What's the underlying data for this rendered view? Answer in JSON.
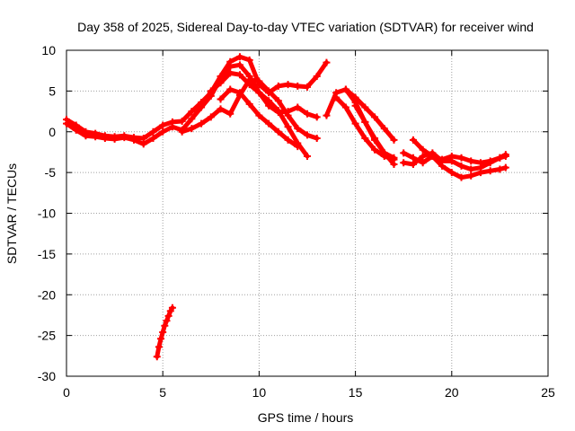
{
  "chart_data": {
    "type": "scatter",
    "title": "Day 358 of 2025, Sidereal Day-to-day VTEC variation (SDTVAR) for receiver wind",
    "xlabel": "GPS time / hours",
    "ylabel": "SDTVAR / TECUs",
    "xlim": [
      0,
      25
    ],
    "ylim": [
      -30,
      10
    ],
    "xticks": [
      0,
      5,
      10,
      15,
      20,
      25
    ],
    "yticks": [
      -30,
      -25,
      -20,
      -15,
      -10,
      -5,
      0,
      5,
      10
    ],
    "grid": true,
    "marker": "+",
    "color": "#ff0000",
    "series": [
      {
        "name": "track-1",
        "x": [
          0.0,
          0.5,
          1.0,
          1.5,
          2.0,
          2.5,
          3.0,
          3.5,
          4.0,
          4.5,
          5.0,
          5.5,
          6.0,
          6.5,
          7.0,
          7.5,
          8.0,
          8.5,
          9.0,
          9.5,
          10.0,
          10.5,
          11.0,
          11.5,
          12.0,
          12.5,
          13.0,
          13.5
        ],
        "y": [
          1.5,
          0.8,
          0.0,
          -0.2,
          -0.5,
          -0.6,
          -0.5,
          -0.7,
          -0.8,
          0.0,
          0.8,
          1.2,
          1.3,
          2.5,
          3.6,
          4.8,
          6.8,
          8.6,
          9.2,
          8.8,
          5.8,
          4.8,
          5.6,
          5.8,
          5.6,
          5.5,
          6.8,
          8.5
        ]
      },
      {
        "name": "track-2",
        "x": [
          0.0,
          0.5,
          1.0,
          1.5,
          2.0,
          2.5,
          3.0,
          3.5,
          4.0,
          4.5,
          5.0,
          5.5,
          6.0,
          6.5,
          7.0,
          7.5,
          8.0,
          8.5,
          9.0,
          9.5,
          10.0,
          10.5,
          11.0,
          11.5,
          12.0,
          12.5,
          13.0
        ],
        "y": [
          1.0,
          0.2,
          -0.5,
          -0.6,
          -0.8,
          -0.9,
          -0.7,
          -1.0,
          -1.5,
          -0.8,
          0.0,
          0.6,
          0.2,
          1.6,
          3.0,
          4.4,
          6.5,
          8.0,
          8.2,
          6.8,
          4.8,
          3.2,
          2.4,
          2.5,
          3.0,
          2.2,
          1.8
        ]
      },
      {
        "name": "track-3",
        "x": [
          7.5,
          8.0,
          8.5,
          9.0,
          9.5,
          10.0,
          10.5,
          11.0,
          11.5,
          12.0,
          12.5
        ],
        "y": [
          5.0,
          6.0,
          7.2,
          7.0,
          5.8,
          4.8,
          3.8,
          2.6,
          0.6,
          -1.4,
          -3.0
        ]
      },
      {
        "name": "track-4",
        "x": [
          8.0,
          8.5,
          9.0,
          9.5,
          10.0,
          10.5,
          11.0,
          11.5,
          12.0
        ],
        "y": [
          4.0,
          5.2,
          4.8,
          3.4,
          2.0,
          1.0,
          0.0,
          -1.0,
          -1.8
        ]
      },
      {
        "name": "track-5",
        "x": [
          6.0,
          6.5,
          7.0,
          7.5,
          8.0,
          8.5,
          9.0,
          9.5,
          10.0,
          10.5,
          11.0,
          11.5,
          12.0,
          12.5,
          13.0
        ],
        "y": [
          0.0,
          0.4,
          1.0,
          1.8,
          2.8,
          2.2,
          4.5,
          6.4,
          6.2,
          5.0,
          3.8,
          2.0,
          0.4,
          -0.4,
          -0.8
        ]
      },
      {
        "name": "track-6",
        "x": [
          13.5,
          14.0,
          14.5,
          15.0,
          15.5,
          16.0,
          16.5,
          17.0
        ],
        "y": [
          2.0,
          4.8,
          5.2,
          3.6,
          1.2,
          -1.0,
          -2.6,
          -3.2
        ]
      },
      {
        "name": "track-7",
        "x": [
          14.0,
          14.5,
          15.0,
          15.5,
          16.0,
          16.5,
          17.0
        ],
        "y": [
          4.2,
          3.0,
          1.0,
          -0.8,
          -2.2,
          -3.0,
          -3.4
        ]
      },
      {
        "name": "track-8",
        "x": [
          14.5,
          15.0,
          15.5,
          16.0,
          16.5,
          17.0
        ],
        "y": [
          5.2,
          4.2,
          3.0,
          1.8,
          0.4,
          -1.0
        ]
      },
      {
        "name": "track-9",
        "x": [
          15.0,
          15.5,
          16.0,
          16.5,
          17.0
        ],
        "y": [
          3.2,
          1.2,
          -0.8,
          -2.6,
          -4.0
        ]
      },
      {
        "name": "track-10",
        "x": [
          17.5,
          18.0,
          18.5,
          19.0,
          19.5,
          20.0,
          20.5,
          21.0,
          21.5,
          22.0,
          22.5,
          22.8
        ],
        "y": [
          -3.8,
          -4.0,
          -3.0,
          -2.6,
          -3.6,
          -3.6,
          -4.2,
          -4.6,
          -4.4,
          -3.8,
          -3.2,
          -2.8
        ]
      },
      {
        "name": "track-11",
        "x": [
          17.5,
          18.0,
          18.5,
          19.0,
          19.5,
          20.0,
          20.5,
          21.0,
          21.5,
          22.0,
          22.5,
          22.8
        ],
        "y": [
          -2.6,
          -3.2,
          -3.8,
          -3.0,
          -3.4,
          -3.0,
          -3.2,
          -3.6,
          -3.8,
          -3.6,
          -3.2,
          -3.0
        ]
      },
      {
        "name": "track-12",
        "x": [
          18.0,
          18.5,
          19.0,
          19.5,
          20.0,
          20.5,
          21.0,
          21.5,
          22.0,
          22.5,
          22.8
        ],
        "y": [
          -1.0,
          -2.2,
          -3.0,
          -4.2,
          -5.0,
          -5.6,
          -5.4,
          -5.0,
          -4.8,
          -4.6,
          -4.4
        ]
      },
      {
        "name": "track-13",
        "x": [
          4.7,
          4.8,
          4.9,
          5.0,
          5.1,
          5.2,
          5.3,
          5.4,
          5.5
        ],
        "y": [
          -27.6,
          -26.4,
          -25.4,
          -24.6,
          -23.8,
          -23.2,
          -22.6,
          -22.0,
          -21.6
        ]
      }
    ]
  }
}
